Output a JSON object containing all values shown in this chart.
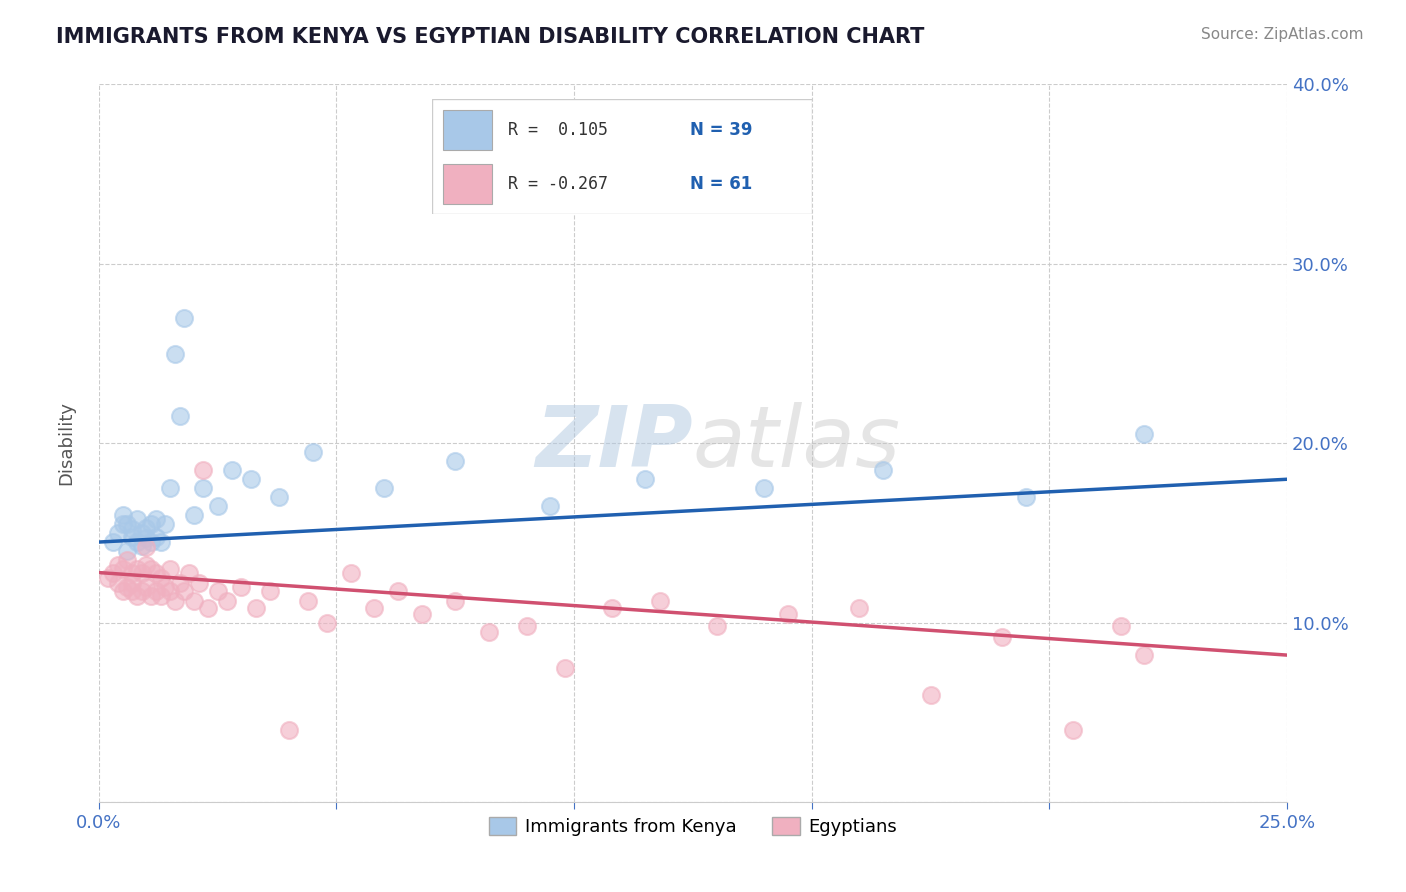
{
  "title": "IMMIGRANTS FROM KENYA VS EGYPTIAN DISABILITY CORRELATION CHART",
  "source": "Source: ZipAtlas.com",
  "ylabel": "Disability",
  "xlim": [
    0.0,
    0.25
  ],
  "ylim": [
    0.0,
    0.4
  ],
  "xticks": [
    0.0,
    0.05,
    0.1,
    0.15,
    0.2,
    0.25
  ],
  "yticks": [
    0.0,
    0.1,
    0.2,
    0.3,
    0.4
  ],
  "xtick_labels": [
    "0.0%",
    "",
    "",
    "",
    "",
    "25.0%"
  ],
  "ytick_labels": [
    "",
    "10.0%",
    "20.0%",
    "30.0%",
    "40.0%"
  ],
  "blue_color": "#a8c8e8",
  "pink_color": "#f0b0c0",
  "blue_line_color": "#2060b0",
  "pink_line_color": "#d05070",
  "legend_R1": "R =  0.105",
  "legend_N1": "N = 39",
  "legend_R2": "R = -0.267",
  "legend_N2": "N = 61",
  "legend_label1": "Immigrants from Kenya",
  "legend_label2": "Egyptians",
  "watermark_zip": "ZIP",
  "watermark_atlas": "atlas",
  "title_color": "#1a1a2e",
  "source_color": "#888888",
  "axis_label_color": "#4472c4",
  "blue_scatter_x": [
    0.003,
    0.004,
    0.005,
    0.005,
    0.006,
    0.006,
    0.007,
    0.007,
    0.008,
    0.008,
    0.009,
    0.009,
    0.01,
    0.01,
    0.011,
    0.011,
    0.012,
    0.012,
    0.013,
    0.014,
    0.015,
    0.016,
    0.017,
    0.018,
    0.02,
    0.022,
    0.025,
    0.028,
    0.032,
    0.038,
    0.045,
    0.06,
    0.075,
    0.095,
    0.115,
    0.14,
    0.165,
    0.195,
    0.22
  ],
  "blue_scatter_y": [
    0.145,
    0.15,
    0.155,
    0.16,
    0.14,
    0.155,
    0.148,
    0.152,
    0.145,
    0.158,
    0.143,
    0.15,
    0.147,
    0.153,
    0.145,
    0.155,
    0.148,
    0.158,
    0.145,
    0.155,
    0.175,
    0.25,
    0.215,
    0.27,
    0.16,
    0.175,
    0.165,
    0.185,
    0.18,
    0.17,
    0.195,
    0.175,
    0.19,
    0.165,
    0.18,
    0.175,
    0.185,
    0.17,
    0.205
  ],
  "pink_scatter_x": [
    0.002,
    0.003,
    0.004,
    0.004,
    0.005,
    0.005,
    0.006,
    0.006,
    0.007,
    0.007,
    0.007,
    0.008,
    0.008,
    0.009,
    0.009,
    0.01,
    0.01,
    0.01,
    0.011,
    0.011,
    0.012,
    0.012,
    0.013,
    0.013,
    0.014,
    0.015,
    0.015,
    0.016,
    0.017,
    0.018,
    0.019,
    0.02,
    0.021,
    0.022,
    0.023,
    0.025,
    0.027,
    0.03,
    0.033,
    0.036,
    0.04,
    0.044,
    0.048,
    0.053,
    0.058,
    0.063,
    0.068,
    0.075,
    0.082,
    0.09,
    0.098,
    0.108,
    0.118,
    0.13,
    0.145,
    0.16,
    0.175,
    0.19,
    0.205,
    0.215,
    0.22
  ],
  "pink_scatter_y": [
    0.125,
    0.128,
    0.122,
    0.132,
    0.118,
    0.13,
    0.12,
    0.135,
    0.118,
    0.128,
    0.122,
    0.115,
    0.13,
    0.118,
    0.128,
    0.12,
    0.132,
    0.142,
    0.115,
    0.13,
    0.118,
    0.128,
    0.115,
    0.125,
    0.12,
    0.118,
    0.13,
    0.112,
    0.122,
    0.118,
    0.128,
    0.112,
    0.122,
    0.185,
    0.108,
    0.118,
    0.112,
    0.12,
    0.108,
    0.118,
    0.04,
    0.112,
    0.1,
    0.128,
    0.108,
    0.118,
    0.105,
    0.112,
    0.095,
    0.098,
    0.075,
    0.108,
    0.112,
    0.098,
    0.105,
    0.108,
    0.06,
    0.092,
    0.04,
    0.098,
    0.082
  ],
  "blue_trend_start": 0.145,
  "blue_trend_end": 0.18,
  "pink_trend_start": 0.128,
  "pink_trend_end": 0.082
}
